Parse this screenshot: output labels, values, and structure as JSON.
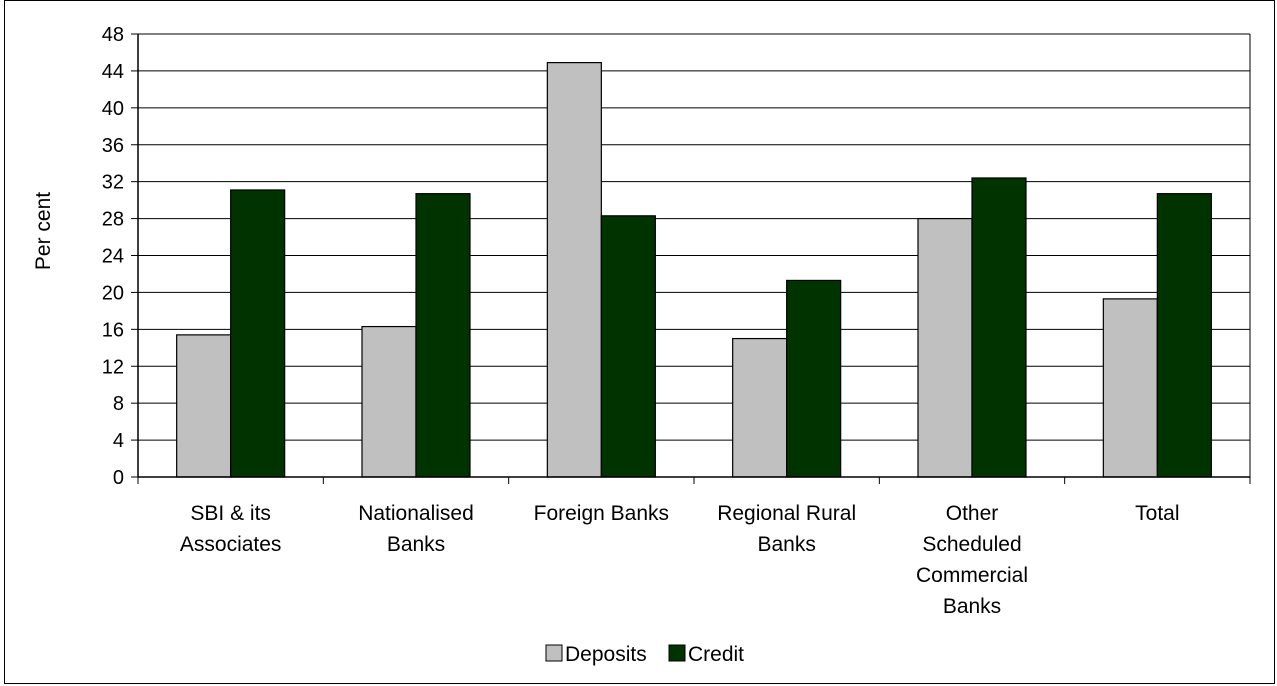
{
  "chart_data": {
    "type": "bar",
    "title": "",
    "xlabel": "",
    "ylabel": "Per cent",
    "ylim": [
      0,
      48
    ],
    "yticks": [
      0,
      4,
      8,
      12,
      16,
      20,
      24,
      28,
      32,
      36,
      40,
      44,
      48
    ],
    "grid": true,
    "legend_position": "bottom",
    "categories": [
      [
        "SBI & its",
        "Associates"
      ],
      [
        "Nationalised",
        "Banks"
      ],
      [
        "Foreign Banks"
      ],
      [
        "Regional Rural",
        "Banks"
      ],
      [
        "Other",
        "Scheduled",
        "Commercial",
        "Banks"
      ],
      [
        "Total"
      ]
    ],
    "series": [
      {
        "name": "Deposits",
        "color": "#c0c0c0",
        "values": [
          15.4,
          16.3,
          44.9,
          15.0,
          28.0,
          19.3
        ]
      },
      {
        "name": "Credit",
        "color": "#003300",
        "values": [
          31.1,
          30.7,
          28.3,
          21.3,
          32.4,
          30.7
        ]
      }
    ]
  }
}
